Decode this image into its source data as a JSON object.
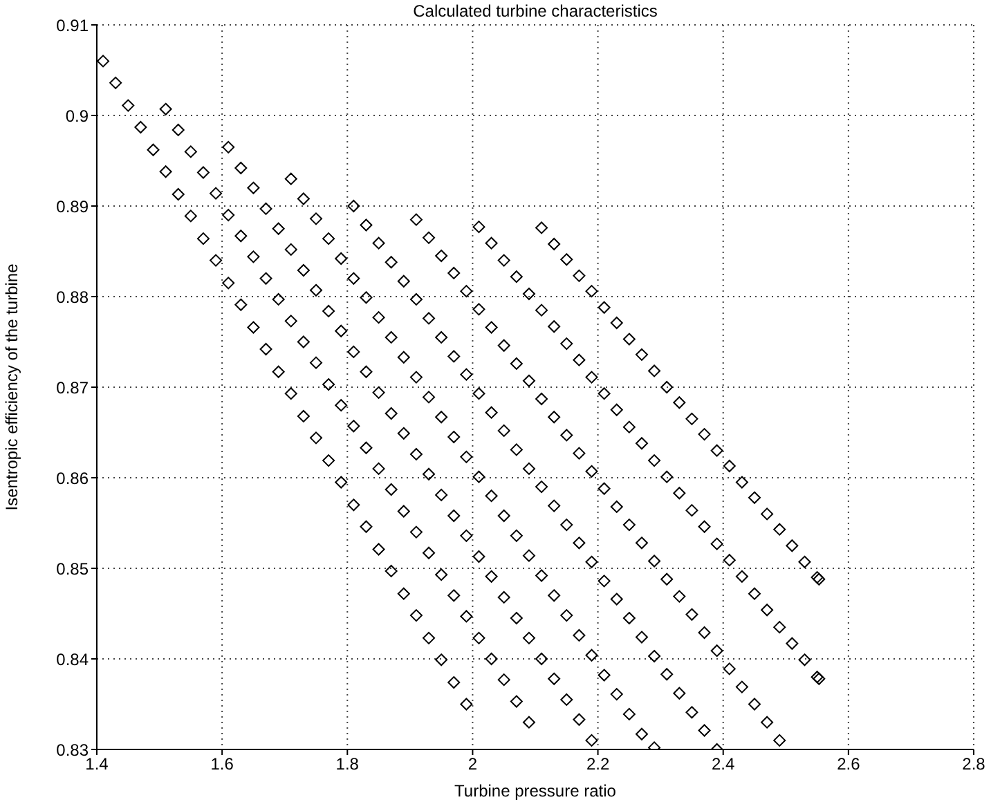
{
  "chart_data": {
    "type": "scatter",
    "title": "Calculated turbine characteristics",
    "xlabel": "Turbine pressure ratio",
    "ylabel": "Isentropic efficiency of the turbine",
    "marker": "diamond",
    "grid": true,
    "legend": false,
    "xlim": [
      1.4,
      2.8
    ],
    "xticks": [
      1.4,
      1.6,
      1.8,
      2,
      2.2,
      2.4,
      2.6,
      2.8
    ],
    "ylim": [
      0.83,
      0.91
    ],
    "yticks": [
      0.83,
      0.84,
      0.85,
      0.86,
      0.87,
      0.88,
      0.89,
      0.9,
      0.91
    ],
    "series": [
      {
        "color": "#000000",
        "x": [
          1.41,
          1.43,
          1.45,
          1.47,
          1.49,
          1.51,
          1.53,
          1.55,
          1.57,
          1.59,
          1.61,
          1.63,
          1.65,
          1.67,
          1.69,
          1.71,
          1.73,
          1.75,
          1.77,
          1.79,
          1.81,
          1.83,
          1.85,
          1.87,
          1.89,
          1.91,
          1.93,
          1.95,
          1.97,
          1.99
        ],
        "values": [
          0.906,
          0.9036,
          0.9011,
          0.8987,
          0.8962,
          0.8938,
          0.8913,
          0.8889,
          0.8864,
          0.884,
          0.8815,
          0.8791,
          0.8766,
          0.8742,
          0.8717,
          0.8693,
          0.8668,
          0.8644,
          0.8619,
          0.8595,
          0.857,
          0.8546,
          0.8521,
          0.8497,
          0.8472,
          0.8448,
          0.8423,
          0.8399,
          0.8374,
          0.835
        ]
      },
      {
        "color": "#000000",
        "x": [
          1.51,
          1.53,
          1.55,
          1.57,
          1.59,
          1.61,
          1.63,
          1.65,
          1.67,
          1.69,
          1.71,
          1.73,
          1.75,
          1.77,
          1.79,
          1.81,
          1.83,
          1.85,
          1.87,
          1.89,
          1.91,
          1.93,
          1.95,
          1.97,
          1.99,
          2.01,
          2.03,
          2.05,
          2.07,
          2.09
        ],
        "values": [
          0.9007,
          0.8984,
          0.896,
          0.8937,
          0.8914,
          0.889,
          0.8867,
          0.8844,
          0.882,
          0.8797,
          0.8773,
          0.875,
          0.8727,
          0.8703,
          0.868,
          0.8657,
          0.8633,
          0.861,
          0.8587,
          0.8563,
          0.854,
          0.8517,
          0.8493,
          0.847,
          0.8447,
          0.8423,
          0.84,
          0.8377,
          0.8353,
          0.833
        ]
      },
      {
        "color": "#000000",
        "x": [
          1.61,
          1.63,
          1.65,
          1.67,
          1.69,
          1.71,
          1.73,
          1.75,
          1.77,
          1.79,
          1.81,
          1.83,
          1.85,
          1.87,
          1.89,
          1.91,
          1.93,
          1.95,
          1.97,
          1.99,
          2.01,
          2.03,
          2.05,
          2.07,
          2.09,
          2.11,
          2.13,
          2.15,
          2.17,
          2.19
        ],
        "values": [
          0.8965,
          0.8942,
          0.892,
          0.8897,
          0.8875,
          0.8852,
          0.8829,
          0.8807,
          0.8784,
          0.8762,
          0.8739,
          0.8717,
          0.8694,
          0.8671,
          0.8649,
          0.8626,
          0.8604,
          0.8581,
          0.8558,
          0.8536,
          0.8513,
          0.8491,
          0.8468,
          0.8445,
          0.8423,
          0.84,
          0.8378,
          0.8355,
          0.8333,
          0.831
        ]
      },
      {
        "color": "#000000",
        "x": [
          1.71,
          1.73,
          1.75,
          1.77,
          1.79,
          1.81,
          1.83,
          1.85,
          1.87,
          1.89,
          1.91,
          1.93,
          1.95,
          1.97,
          1.99,
          2.01,
          2.03,
          2.05,
          2.07,
          2.09,
          2.11,
          2.13,
          2.15,
          2.17,
          2.19,
          2.21,
          2.23,
          2.25,
          2.27,
          2.29
        ],
        "values": [
          0.893,
          0.8908,
          0.8886,
          0.8864,
          0.8842,
          0.882,
          0.8799,
          0.8777,
          0.8755,
          0.8733,
          0.8711,
          0.8689,
          0.8667,
          0.8645,
          0.8623,
          0.8601,
          0.858,
          0.8558,
          0.8536,
          0.8514,
          0.8492,
          0.847,
          0.8448,
          0.8426,
          0.8404,
          0.8382,
          0.8361,
          0.8339,
          0.8317,
          0.8302
        ]
      },
      {
        "color": "#000000",
        "x": [
          1.81,
          1.83,
          1.85,
          1.87,
          1.89,
          1.91,
          1.93,
          1.95,
          1.97,
          1.99,
          2.01,
          2.03,
          2.05,
          2.07,
          2.09,
          2.11,
          2.13,
          2.15,
          2.17,
          2.19,
          2.21,
          2.23,
          2.25,
          2.27,
          2.29,
          2.31,
          2.33,
          2.35,
          2.37,
          2.39
        ],
        "values": [
          0.89,
          0.8879,
          0.8859,
          0.8838,
          0.8817,
          0.8797,
          0.8776,
          0.8755,
          0.8734,
          0.8714,
          0.8693,
          0.8672,
          0.8652,
          0.8631,
          0.861,
          0.859,
          0.8569,
          0.8548,
          0.8528,
          0.8507,
          0.8486,
          0.8466,
          0.8445,
          0.8424,
          0.8403,
          0.8383,
          0.8362,
          0.8341,
          0.8321,
          0.83
        ]
      },
      {
        "color": "#000000",
        "x": [
          1.91,
          1.93,
          1.95,
          1.97,
          1.99,
          2.01,
          2.03,
          2.05,
          2.07,
          2.09,
          2.11,
          2.13,
          2.15,
          2.17,
          2.19,
          2.21,
          2.23,
          2.25,
          2.27,
          2.29,
          2.31,
          2.33,
          2.35,
          2.37,
          2.39,
          2.41,
          2.43,
          2.45,
          2.47,
          2.49
        ],
        "values": [
          0.8885,
          0.8865,
          0.8845,
          0.8826,
          0.8806,
          0.8786,
          0.8766,
          0.8746,
          0.8726,
          0.8707,
          0.8687,
          0.8667,
          0.8647,
          0.8627,
          0.8607,
          0.8588,
          0.8568,
          0.8548,
          0.8528,
          0.8508,
          0.8488,
          0.8469,
          0.8449,
          0.8429,
          0.8409,
          0.8389,
          0.8369,
          0.835,
          0.833,
          0.831
        ]
      },
      {
        "color": "#000000",
        "x": [
          2.01,
          2.03,
          2.05,
          2.07,
          2.09,
          2.11,
          2.13,
          2.15,
          2.17,
          2.19,
          2.21,
          2.23,
          2.25,
          2.27,
          2.29,
          2.31,
          2.33,
          2.35,
          2.37,
          2.39,
          2.41,
          2.43,
          2.45,
          2.47,
          2.49,
          2.51,
          2.53,
          2.55,
          2.553
        ],
        "values": [
          0.8877,
          0.8859,
          0.884,
          0.8822,
          0.8803,
          0.8785,
          0.8767,
          0.8748,
          0.873,
          0.8711,
          0.8693,
          0.8675,
          0.8656,
          0.8638,
          0.8619,
          0.8601,
          0.8583,
          0.8564,
          0.8546,
          0.8527,
          0.8509,
          0.8491,
          0.8472,
          0.8454,
          0.8435,
          0.8417,
          0.8399,
          0.838,
          0.8378
        ]
      },
      {
        "color": "#000000",
        "x": [
          2.11,
          2.13,
          2.15,
          2.17,
          2.19,
          2.21,
          2.23,
          2.25,
          2.27,
          2.29,
          2.31,
          2.33,
          2.35,
          2.37,
          2.39,
          2.41,
          2.43,
          2.45,
          2.47,
          2.49,
          2.51,
          2.53,
          2.55,
          2.553
        ],
        "values": [
          0.8876,
          0.8858,
          0.8841,
          0.8823,
          0.8806,
          0.8788,
          0.8771,
          0.8753,
          0.8736,
          0.8718,
          0.87,
          0.8683,
          0.8665,
          0.8648,
          0.863,
          0.8613,
          0.8595,
          0.8578,
          0.856,
          0.8543,
          0.8525,
          0.8507,
          0.849,
          0.8488
        ]
      }
    ]
  }
}
